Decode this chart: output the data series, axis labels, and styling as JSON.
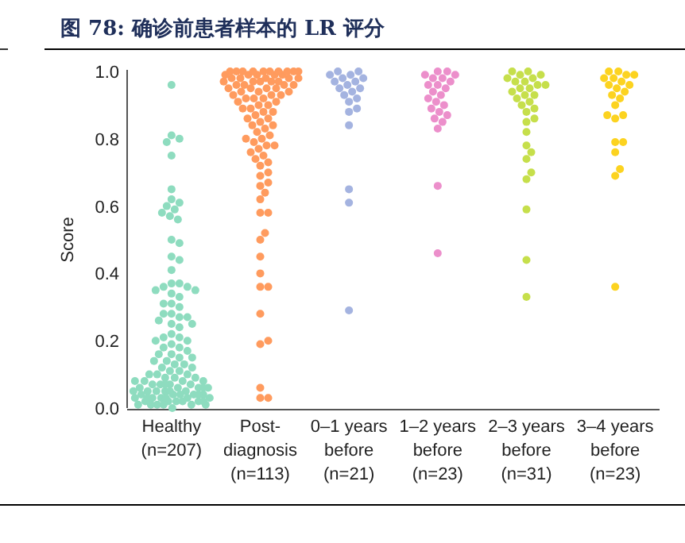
{
  "chart_data": {
    "type": "scatter",
    "title": "图 78:  确诊前患者样本的 LR 评分",
    "ylabel": "Score",
    "categories": [
      "Healthy\n(n=207)",
      "Post-\ndiagnosis\n(n=113)",
      "0–1 years\nbefore\n(n=21)",
      "1–2 years\nbefore\n(n=23)",
      "2–3 years\nbefore\n(n=31)",
      "3–4 years\nbefore\n(n=23)"
    ],
    "ylim": [
      0,
      1
    ],
    "yticks": [
      {
        "value": 0,
        "label": "0.0"
      },
      {
        "value": 0.2,
        "label": "0.2"
      },
      {
        "value": 0.4,
        "label": "0.4"
      },
      {
        "value": 0.6,
        "label": "0.6"
      },
      {
        "value": 0.8,
        "label": "0.8"
      },
      {
        "value": 1,
        "label": "1.0"
      }
    ],
    "marker": "circle",
    "series": [
      {
        "color": "#8edcbf",
        "x": [
          "Healthy\n(n=207)",
          "Healthy\n(n=207)",
          "Healthy\n(n=207)",
          "Healthy\n(n=207)",
          "Healthy\n(n=207)",
          "Healthy\n(n=207)",
          "Healthy\n(n=207)",
          "Healthy\n(n=207)",
          "Healthy\n(n=207)",
          "Healthy\n(n=207)",
          "Healthy\n(n=207)",
          "Healthy\n(n=207)",
          "Healthy\n(n=207)",
          "Healthy\n(n=207)",
          "Healthy\n(n=207)",
          "Healthy\n(n=207)",
          "Healthy\n(n=207)",
          "Healthy\n(n=207)",
          "Healthy\n(n=207)",
          "Healthy\n(n=207)",
          "Healthy\n(n=207)",
          "Healthy\n(n=207)",
          "Healthy\n(n=207)",
          "Healthy\n(n=207)",
          "Healthy\n(n=207)",
          "Healthy\n(n=207)",
          "Healthy\n(n=207)",
          "Healthy\n(n=207)",
          "Healthy\n(n=207)",
          "Healthy\n(n=207)",
          "Healthy\n(n=207)",
          "Healthy\n(n=207)",
          "Healthy\n(n=207)",
          "Healthy\n(n=207)",
          "Healthy\n(n=207)",
          "Healthy\n(n=207)",
          "Healthy\n(n=207)",
          "Healthy\n(n=207)",
          "Healthy\n(n=207)",
          "Healthy\n(n=207)",
          "Healthy\n(n=207)",
          "Healthy\n(n=207)",
          "Healthy\n(n=207)",
          "Healthy\n(n=207)",
          "Healthy\n(n=207)",
          "Healthy\n(n=207)",
          "Healthy\n(n=207)",
          "Healthy\n(n=207)",
          "Healthy\n(n=207)",
          "Healthy\n(n=207)",
          "Healthy\n(n=207)",
          "Healthy\n(n=207)",
          "Healthy\n(n=207)",
          "Healthy\n(n=207)",
          "Healthy\n(n=207)",
          "Healthy\n(n=207)",
          "Healthy\n(n=207)",
          "Healthy\n(n=207)",
          "Healthy\n(n=207)",
          "Healthy\n(n=207)",
          "Healthy\n(n=207)",
          "Healthy\n(n=207)",
          "Healthy\n(n=207)",
          "Healthy\n(n=207)",
          "Healthy\n(n=207)",
          "Healthy\n(n=207)",
          "Healthy\n(n=207)",
          "Healthy\n(n=207)",
          "Healthy\n(n=207)",
          "Healthy\n(n=207)",
          "Healthy\n(n=207)",
          "Healthy\n(n=207)",
          "Healthy\n(n=207)",
          "Healthy\n(n=207)",
          "Healthy\n(n=207)",
          "Healthy\n(n=207)",
          "Healthy\n(n=207)",
          "Healthy\n(n=207)",
          "Healthy\n(n=207)",
          "Healthy\n(n=207)",
          "Healthy\n(n=207)",
          "Healthy\n(n=207)",
          "Healthy\n(n=207)",
          "Healthy\n(n=207)",
          "Healthy\n(n=207)",
          "Healthy\n(n=207)",
          "Healthy\n(n=207)",
          "Healthy\n(n=207)",
          "Healthy\n(n=207)",
          "Healthy\n(n=207)",
          "Healthy\n(n=207)",
          "Healthy\n(n=207)",
          "Healthy\n(n=207)",
          "Healthy\n(n=207)",
          "Healthy\n(n=207)",
          "Healthy\n(n=207)",
          "Healthy\n(n=207)",
          "Healthy\n(n=207)",
          "Healthy\n(n=207)",
          "Healthy\n(n=207)",
          "Healthy\n(n=207)",
          "Healthy\n(n=207)",
          "Healthy\n(n=207)",
          "Healthy\n(n=207)",
          "Healthy\n(n=207)",
          "Healthy\n(n=207)",
          "Healthy\n(n=207)",
          "Healthy\n(n=207)",
          "Healthy\n(n=207)",
          "Healthy\n(n=207)"
        ],
        "values": [
          0.96,
          0.81,
          0.8,
          0.79,
          0.75,
          0.65,
          0.62,
          0.61,
          0.6,
          0.59,
          0.58,
          0.57,
          0.56,
          0.5,
          0.49,
          0.45,
          0.44,
          0.41,
          0.37,
          0.37,
          0.36,
          0.36,
          0.35,
          0.35,
          0.34,
          0.33,
          0.31,
          0.31,
          0.3,
          0.28,
          0.28,
          0.27,
          0.27,
          0.26,
          0.25,
          0.25,
          0.24,
          0.22,
          0.21,
          0.21,
          0.2,
          0.2,
          0.19,
          0.18,
          0.18,
          0.17,
          0.16,
          0.16,
          0.15,
          0.15,
          0.14,
          0.14,
          0.13,
          0.13,
          0.12,
          0.12,
          0.11,
          0.11,
          0.1,
          0.1,
          0.1,
          0.09,
          0.09,
          0.09,
          0.08,
          0.08,
          0.08,
          0.07,
          0.07,
          0.07,
          0.07,
          0.06,
          0.06,
          0.06,
          0.06,
          0.05,
          0.05,
          0.05,
          0.05,
          0.05,
          0.04,
          0.04,
          0.04,
          0.04,
          0.04,
          0.03,
          0.03,
          0.03,
          0.03,
          0.03,
          0.02,
          0.02,
          0.02,
          0.02,
          0.02,
          0.01,
          0.01,
          0.01,
          0.01,
          0.01,
          0.08,
          0.06,
          0.04,
          0.03,
          0.02,
          0.07,
          0.05,
          0.03,
          0.01,
          0.0
        ]
      },
      {
        "color": "#ff9b5e",
        "x": [
          "Post-\ndiagnosis\n(n=113)",
          "Post-\ndiagnosis\n(n=113)",
          "Post-\ndiagnosis\n(n=113)",
          "Post-\ndiagnosis\n(n=113)",
          "Post-\ndiagnosis\n(n=113)",
          "Post-\ndiagnosis\n(n=113)",
          "Post-\ndiagnosis\n(n=113)",
          "Post-\ndiagnosis\n(n=113)",
          "Post-\ndiagnosis\n(n=113)",
          "Post-\ndiagnosis\n(n=113)",
          "Post-\ndiagnosis\n(n=113)",
          "Post-\ndiagnosis\n(n=113)",
          "Post-\ndiagnosis\n(n=113)",
          "Post-\ndiagnosis\n(n=113)",
          "Post-\ndiagnosis\n(n=113)",
          "Post-\ndiagnosis\n(n=113)",
          "Post-\ndiagnosis\n(n=113)",
          "Post-\ndiagnosis\n(n=113)",
          "Post-\ndiagnosis\n(n=113)",
          "Post-\ndiagnosis\n(n=113)",
          "Post-\ndiagnosis\n(n=113)",
          "Post-\ndiagnosis\n(n=113)",
          "Post-\ndiagnosis\n(n=113)",
          "Post-\ndiagnosis\n(n=113)",
          "Post-\ndiagnosis\n(n=113)",
          "Post-\ndiagnosis\n(n=113)",
          "Post-\ndiagnosis\n(n=113)",
          "Post-\ndiagnosis\n(n=113)",
          "Post-\ndiagnosis\n(n=113)",
          "Post-\ndiagnosis\n(n=113)",
          "Post-\ndiagnosis\n(n=113)",
          "Post-\ndiagnosis\n(n=113)",
          "Post-\ndiagnosis\n(n=113)",
          "Post-\ndiagnosis\n(n=113)",
          "Post-\ndiagnosis\n(n=113)",
          "Post-\ndiagnosis\n(n=113)",
          "Post-\ndiagnosis\n(n=113)",
          "Post-\ndiagnosis\n(n=113)",
          "Post-\ndiagnosis\n(n=113)",
          "Post-\ndiagnosis\n(n=113)",
          "Post-\ndiagnosis\n(n=113)",
          "Post-\ndiagnosis\n(n=113)",
          "Post-\ndiagnosis\n(n=113)",
          "Post-\ndiagnosis\n(n=113)",
          "Post-\ndiagnosis\n(n=113)",
          "Post-\ndiagnosis\n(n=113)",
          "Post-\ndiagnosis\n(n=113)",
          "Post-\ndiagnosis\n(n=113)",
          "Post-\ndiagnosis\n(n=113)",
          "Post-\ndiagnosis\n(n=113)",
          "Post-\ndiagnosis\n(n=113)",
          "Post-\ndiagnosis\n(n=113)",
          "Post-\ndiagnosis\n(n=113)",
          "Post-\ndiagnosis\n(n=113)",
          "Post-\ndiagnosis\n(n=113)",
          "Post-\ndiagnosis\n(n=113)",
          "Post-\ndiagnosis\n(n=113)",
          "Post-\ndiagnosis\n(n=113)",
          "Post-\ndiagnosis\n(n=113)",
          "Post-\ndiagnosis\n(n=113)",
          "Post-\ndiagnosis\n(n=113)",
          "Post-\ndiagnosis\n(n=113)",
          "Post-\ndiagnosis\n(n=113)",
          "Post-\ndiagnosis\n(n=113)",
          "Post-\ndiagnosis\n(n=113)",
          "Post-\ndiagnosis\n(n=113)",
          "Post-\ndiagnosis\n(n=113)",
          "Post-\ndiagnosis\n(n=113)",
          "Post-\ndiagnosis\n(n=113)",
          "Post-\ndiagnosis\n(n=113)",
          "Post-\ndiagnosis\n(n=113)",
          "Post-\ndiagnosis\n(n=113)",
          "Post-\ndiagnosis\n(n=113)",
          "Post-\ndiagnosis\n(n=113)",
          "Post-\ndiagnosis\n(n=113)",
          "Post-\ndiagnosis\n(n=113)",
          "Post-\ndiagnosis\n(n=113)",
          "Post-\ndiagnosis\n(n=113)",
          "Post-\ndiagnosis\n(n=113)",
          "Post-\ndiagnosis\n(n=113)",
          "Post-\ndiagnosis\n(n=113)",
          "Post-\ndiagnosis\n(n=113)",
          "Post-\ndiagnosis\n(n=113)",
          "Post-\ndiagnosis\n(n=113)",
          "Post-\ndiagnosis\n(n=113)",
          "Post-\ndiagnosis\n(n=113)",
          "Post-\ndiagnosis\n(n=113)",
          "Post-\ndiagnosis\n(n=113)",
          "Post-\ndiagnosis\n(n=113)",
          "Post-\ndiagnosis\n(n=113)"
        ],
        "values": [
          0.03,
          0.03,
          0.06,
          0.19,
          0.2,
          0.28,
          0.36,
          0.36,
          0.4,
          0.45,
          0.5,
          0.52,
          0.58,
          0.58,
          0.62,
          0.64,
          0.66,
          0.67,
          0.69,
          0.7,
          0.72,
          0.73,
          0.74,
          0.75,
          0.76,
          0.77,
          0.78,
          0.78,
          0.79,
          0.8,
          0.8,
          0.81,
          0.82,
          0.83,
          0.84,
          0.84,
          0.85,
          0.86,
          0.86,
          0.87,
          0.88,
          0.88,
          0.89,
          0.89,
          0.9,
          0.9,
          0.91,
          0.91,
          0.92,
          0.92,
          0.92,
          0.93,
          0.93,
          0.93,
          0.94,
          0.94,
          0.94,
          0.95,
          0.95,
          0.95,
          0.95,
          0.96,
          0.96,
          0.96,
          0.96,
          0.97,
          0.97,
          0.97,
          0.97,
          0.97,
          0.98,
          0.98,
          0.98,
          0.98,
          0.98,
          0.99,
          0.99,
          0.99,
          0.99,
          0.99,
          1.0,
          1.0,
          1.0,
          1.0,
          1.0,
          1.0,
          1.0,
          1.0,
          1.0,
          1.0
        ]
      },
      {
        "color": "#a4b3e0",
        "x": [
          "0–1 years\nbefore\n(n=21)",
          "0–1 years\nbefore\n(n=21)",
          "0–1 years\nbefore\n(n=21)",
          "0–1 years\nbefore\n(n=21)",
          "0–1 years\nbefore\n(n=21)",
          "0–1 years\nbefore\n(n=21)",
          "0–1 years\nbefore\n(n=21)",
          "0–1 years\nbefore\n(n=21)",
          "0–1 years\nbefore\n(n=21)",
          "0–1 years\nbefore\n(n=21)",
          "0–1 years\nbefore\n(n=21)",
          "0–1 years\nbefore\n(n=21)",
          "0–1 years\nbefore\n(n=21)",
          "0–1 years\nbefore\n(n=21)",
          "0–1 years\nbefore\n(n=21)",
          "0–1 years\nbefore\n(n=21)",
          "0–1 years\nbefore\n(n=21)",
          "0–1 years\nbefore\n(n=21)",
          "0–1 years\nbefore\n(n=21)",
          "0–1 years\nbefore\n(n=21)",
          "0–1 years\nbefore\n(n=21)"
        ],
        "values": [
          0.29,
          0.61,
          0.65,
          0.84,
          0.88,
          0.89,
          0.91,
          0.92,
          0.93,
          0.94,
          0.95,
          0.95,
          0.96,
          0.97,
          0.97,
          0.98,
          0.98,
          0.99,
          0.99,
          1.0,
          1.0
        ]
      },
      {
        "color": "#ec8fcb",
        "x": [
          "1–2 years\nbefore\n(n=23)",
          "1–2 years\nbefore\n(n=23)",
          "1–2 years\nbefore\n(n=23)",
          "1–2 years\nbefore\n(n=23)",
          "1–2 years\nbefore\n(n=23)",
          "1–2 years\nbefore\n(n=23)",
          "1–2 years\nbefore\n(n=23)",
          "1–2 years\nbefore\n(n=23)",
          "1–2 years\nbefore\n(n=23)",
          "1–2 years\nbefore\n(n=23)",
          "1–2 years\nbefore\n(n=23)",
          "1–2 years\nbefore\n(n=23)",
          "1–2 years\nbefore\n(n=23)",
          "1–2 years\nbefore\n(n=23)",
          "1–2 years\nbefore\n(n=23)",
          "1–2 years\nbefore\n(n=23)",
          "1–2 years\nbefore\n(n=23)",
          "1–2 years\nbefore\n(n=23)",
          "1–2 years\nbefore\n(n=23)",
          "1–2 years\nbefore\n(n=23)",
          "1–2 years\nbefore\n(n=23)",
          "1–2 years\nbefore\n(n=23)",
          "1–2 years\nbefore\n(n=23)"
        ],
        "values": [
          0.46,
          0.66,
          0.83,
          0.85,
          0.86,
          0.87,
          0.88,
          0.89,
          0.9,
          0.91,
          0.92,
          0.93,
          0.94,
          0.95,
          0.96,
          0.96,
          0.97,
          0.98,
          0.98,
          0.99,
          0.99,
          1.0,
          1.0
        ]
      },
      {
        "color": "#c6df4b",
        "x": [
          "2–3 years\nbefore\n(n=31)",
          "2–3 years\nbefore\n(n=31)",
          "2–3 years\nbefore\n(n=31)",
          "2–3 years\nbefore\n(n=31)",
          "2–3 years\nbefore\n(n=31)",
          "2–3 years\nbefore\n(n=31)",
          "2–3 years\nbefore\n(n=31)",
          "2–3 years\nbefore\n(n=31)",
          "2–3 years\nbefore\n(n=31)",
          "2–3 years\nbefore\n(n=31)",
          "2–3 years\nbefore\n(n=31)",
          "2–3 years\nbefore\n(n=31)",
          "2–3 years\nbefore\n(n=31)",
          "2–3 years\nbefore\n(n=31)",
          "2–3 years\nbefore\n(n=31)",
          "2–3 years\nbefore\n(n=31)",
          "2–3 years\nbefore\n(n=31)",
          "2–3 years\nbefore\n(n=31)",
          "2–3 years\nbefore\n(n=31)",
          "2–3 years\nbefore\n(n=31)",
          "2–3 years\nbefore\n(n=31)",
          "2–3 years\nbefore\n(n=31)",
          "2–3 years\nbefore\n(n=31)",
          "2–3 years\nbefore\n(n=31)",
          "2–3 years\nbefore\n(n=31)",
          "2–3 years\nbefore\n(n=31)",
          "2–3 years\nbefore\n(n=31)",
          "2–3 years\nbefore\n(n=31)",
          "2–3 years\nbefore\n(n=31)",
          "2–3 years\nbefore\n(n=31)",
          "2–3 years\nbefore\n(n=31)"
        ],
        "values": [
          0.33,
          0.44,
          0.59,
          0.68,
          0.7,
          0.74,
          0.76,
          0.78,
          0.82,
          0.85,
          0.86,
          0.88,
          0.89,
          0.9,
          0.91,
          0.92,
          0.93,
          0.93,
          0.94,
          0.95,
          0.95,
          0.96,
          0.96,
          0.97,
          0.97,
          0.98,
          0.98,
          0.99,
          0.99,
          1.0,
          1.0
        ]
      },
      {
        "color": "#fcd320",
        "x": [
          "3–4 years\nbefore\n(n=23)",
          "3–4 years\nbefore\n(n=23)",
          "3–4 years\nbefore\n(n=23)",
          "3–4 years\nbefore\n(n=23)",
          "3–4 years\nbefore\n(n=23)",
          "3–4 years\nbefore\n(n=23)",
          "3–4 years\nbefore\n(n=23)",
          "3–4 years\nbefore\n(n=23)",
          "3–4 years\nbefore\n(n=23)",
          "3–4 years\nbefore\n(n=23)",
          "3–4 years\nbefore\n(n=23)",
          "3–4 years\nbefore\n(n=23)",
          "3–4 years\nbefore\n(n=23)",
          "3–4 years\nbefore\n(n=23)",
          "3–4 years\nbefore\n(n=23)",
          "3–4 years\nbefore\n(n=23)",
          "3–4 years\nbefore\n(n=23)",
          "3–4 years\nbefore\n(n=23)",
          "3–4 years\nbefore\n(n=23)",
          "3–4 years\nbefore\n(n=23)",
          "3–4 years\nbefore\n(n=23)",
          "3–4 years\nbefore\n(n=23)",
          "3–4 years\nbefore\n(n=23)"
        ],
        "values": [
          0.36,
          0.69,
          0.71,
          0.76,
          0.79,
          0.79,
          0.86,
          0.87,
          0.87,
          0.9,
          0.92,
          0.93,
          0.94,
          0.95,
          0.96,
          0.96,
          0.97,
          0.98,
          0.98,
          0.99,
          0.99,
          1.0,
          1.0
        ]
      }
    ]
  }
}
